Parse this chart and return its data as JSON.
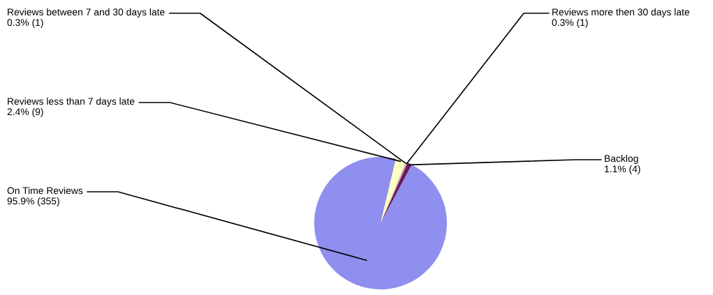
{
  "chart_data": {
    "type": "pie",
    "categories": [
      "On Time Reviews",
      "Reviews less than 7 days late",
      "Reviews between 7 and 30 days late",
      "Reviews more then 30 days late",
      "Backlog"
    ],
    "values": [
      355,
      9,
      1,
      1,
      4
    ],
    "value_labels": [
      "95.9% (355)",
      "2.4% (9)",
      "0.3% (1)",
      "0.3% (1)",
      "1.1% (4)"
    ],
    "colors": [
      "#8f8fef",
      "#ffffc0",
      "#a0e0e0",
      "#ff8080",
      "#6a1a5a"
    ],
    "legend": false
  }
}
